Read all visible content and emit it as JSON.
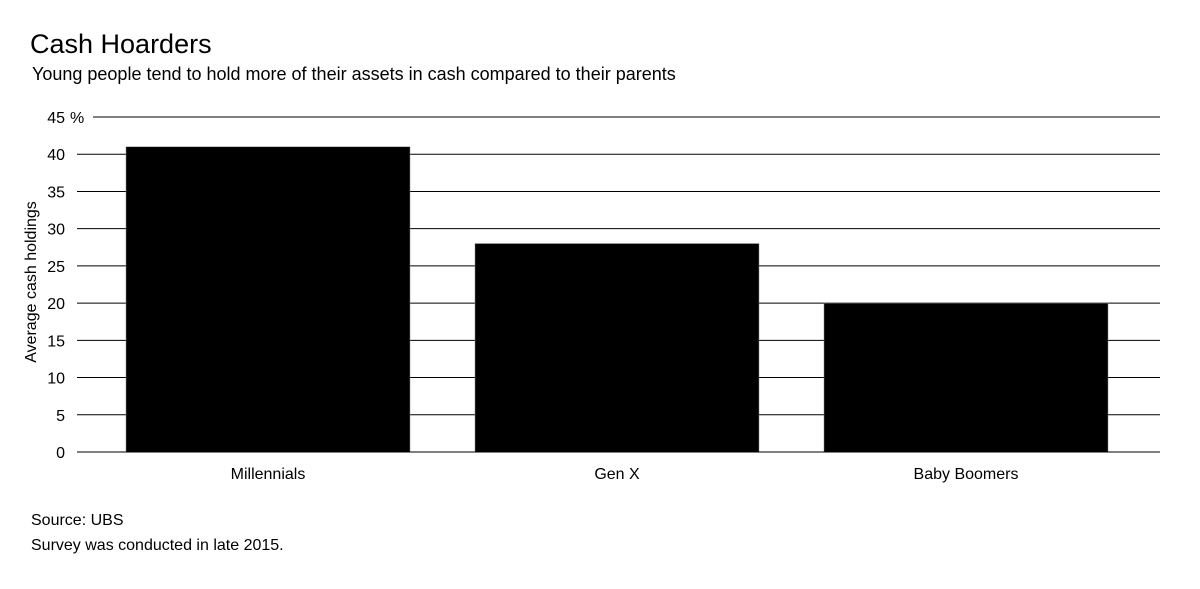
{
  "title": "Cash Hoarders",
  "subtitle": "Young people tend to hold more of their assets in cash compared to their parents",
  "source": "Source: UBS",
  "note": "Survey was conducted in late 2015.",
  "chart_data": {
    "type": "bar",
    "categories": [
      "Millennials",
      "Gen X",
      "Baby Boomers"
    ],
    "values": [
      41,
      28,
      20
    ],
    "ylabel": "Average cash holdings",
    "yunit": "%",
    "ylim": [
      0,
      45
    ],
    "yticks": [
      0,
      5,
      10,
      15,
      20,
      25,
      30,
      35,
      40,
      45
    ],
    "grid": true,
    "bar_color": "#000000"
  }
}
